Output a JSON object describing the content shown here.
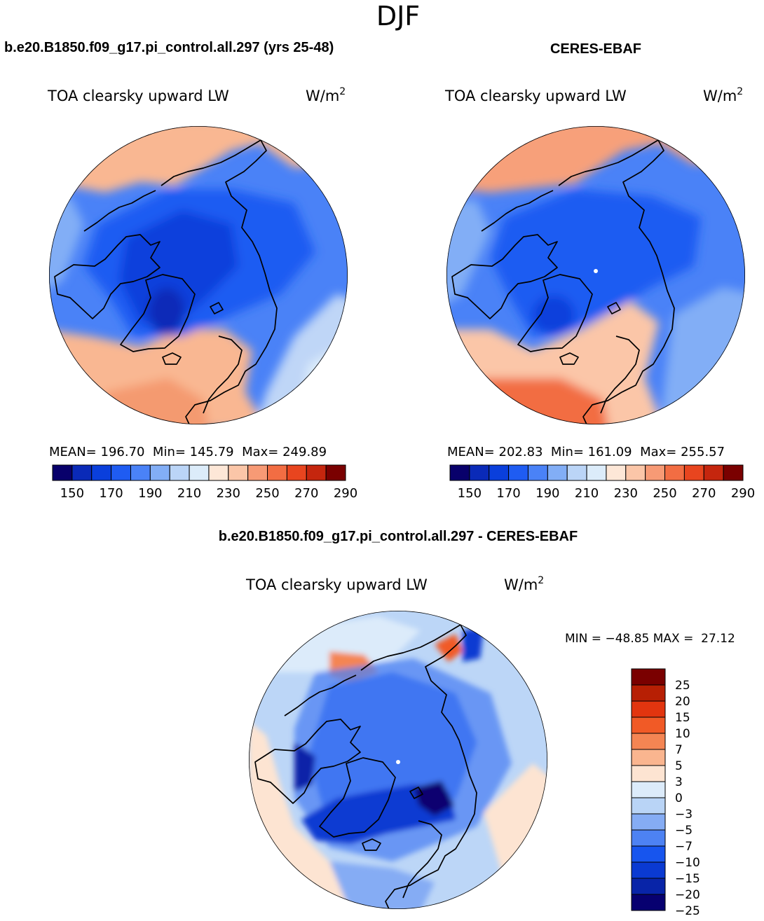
{
  "season": "DJF",
  "colors": {
    "scale": [
      "#08006b",
      "#0a2ab8",
      "#0a3fdc",
      "#1f5cf2",
      "#4a82f7",
      "#82aef6",
      "#bbd5f7",
      "#dcecfa",
      "#fde7d7",
      "#fbc6a8",
      "#f79a75",
      "#f26d43",
      "#e8451f",
      "#c5260e",
      "#7a0000"
    ],
    "diff_scale": [
      "#070070",
      "#0824a8",
      "#0a3ad2",
      "#1755ee",
      "#4d82f3",
      "#85acf4",
      "#b9d4f6",
      "#dcebfa",
      "#fde4d2",
      "#fab58f",
      "#f48553",
      "#f15a26",
      "#e2350f",
      "#b71f04",
      "#7a0000"
    ],
    "land_outline": "#000000",
    "pole_marker": "#ffffff"
  },
  "panels": [
    {
      "header": "b.e20.B1850.f09_g17.pi_control.all.297 (yrs 25-48)",
      "variable": "TOA clearsky upward LW",
      "units": "W/m",
      "units_exp": "2",
      "stats": "MEAN= 196.70  Min= 145.79  Max= 249.89"
    },
    {
      "header": "CERES-EBAF",
      "variable": "TOA clearsky upward LW",
      "units": "W/m",
      "units_exp": "2",
      "stats": "MEAN= 202.83  Min= 161.09  Max= 255.57"
    }
  ],
  "diff_panel": {
    "header": "b.e20.B1850.f09_g17.pi_control.all.297 - CERES-EBAF",
    "variable": "TOA clearsky upward LW",
    "units": "W/m",
    "units_exp": "2",
    "stats": "MIN = −48.85 MAX =  27.12"
  },
  "chart_data": [
    {
      "type": "heatmap",
      "projection": "north-polar-stereographic",
      "title": "TOA clearsky upward LW",
      "units": "W/m2",
      "mean": 196.7,
      "min": 145.79,
      "max": 249.89,
      "colorbar_levels": [
        145,
        150,
        160,
        170,
        180,
        190,
        200,
        210,
        220,
        230,
        240,
        250,
        260,
        270,
        280,
        290
      ],
      "colorbar_tick_labels": [
        "150",
        "170",
        "190",
        "210",
        "230",
        "250",
        "270",
        "290"
      ]
    },
    {
      "type": "heatmap",
      "projection": "north-polar-stereographic",
      "title": "TOA clearsky upward LW",
      "units": "W/m2",
      "mean": 202.83,
      "min": 161.09,
      "max": 255.57,
      "colorbar_levels": [
        145,
        150,
        160,
        170,
        180,
        190,
        200,
        210,
        220,
        230,
        240,
        250,
        260,
        270,
        280,
        290
      ],
      "colorbar_tick_labels": [
        "150",
        "170",
        "190",
        "210",
        "230",
        "250",
        "270",
        "290"
      ]
    },
    {
      "type": "heatmap",
      "projection": "north-polar-stereographic",
      "title": "TOA clearsky upward LW",
      "units": "W/m2",
      "min": -48.85,
      "max": 27.12,
      "colorbar_tick_labels": [
        "25",
        "20",
        "15",
        "10",
        "7",
        "5",
        "3",
        "0",
        "−3",
        "−5",
        "−7",
        "−10",
        "−15",
        "−20",
        "−25"
      ]
    }
  ]
}
